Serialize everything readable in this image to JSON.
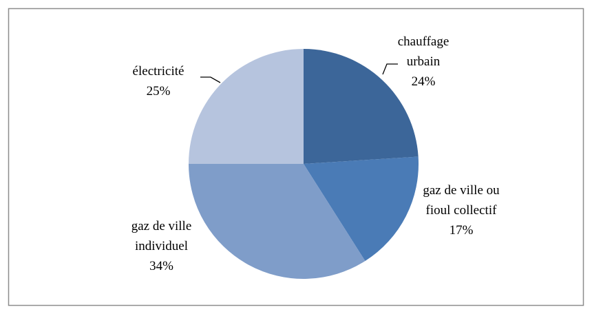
{
  "chart_data": {
    "type": "pie",
    "categories": [
      "chauffage urbain",
      "gaz de ville ou fioul collectif",
      "gaz de ville individuel",
      "électricité"
    ],
    "values": [
      24,
      17,
      34,
      25
    ],
    "value_labels": [
      "24%",
      "17%",
      "34%",
      "25%"
    ],
    "colors": [
      "#3c6699",
      "#4a7bb6",
      "#7f9dc9",
      "#b6c4de"
    ]
  }
}
